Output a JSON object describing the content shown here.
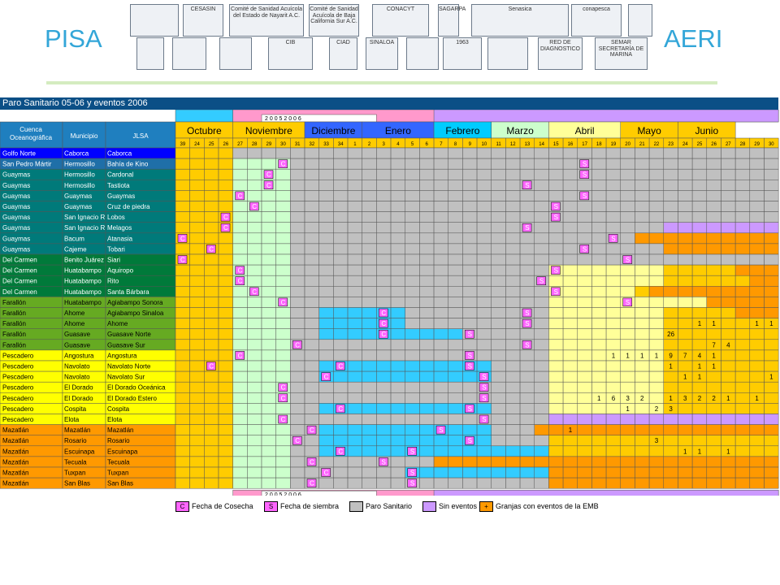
{
  "header": {
    "left_title": "PISA",
    "right_title": "AERI",
    "logos": [
      {
        "name": "sea-bird-logo",
        "label": ""
      },
      {
        "name": "cesasin-logo",
        "label": "CESASIN"
      },
      {
        "name": "comite-nayarit-logo",
        "label": "Comité de Sanidad Acuícola del Estado de Nayarit A.C."
      },
      {
        "name": "comite-bcs-logo",
        "label": "Comité de Sanidad Acuícola de Baja California Sur A.C."
      },
      {
        "name": "conacyt-logo",
        "label": "CONACYT"
      },
      {
        "name": "sagarpa-logo",
        "label": "SAGARPA"
      },
      {
        "name": "senasica-logo",
        "label": "Senasica"
      },
      {
        "name": "conapesca-logo",
        "label": "conapesca"
      },
      {
        "name": "shield-logo",
        "label": ""
      },
      {
        "name": "unam-logo",
        "label": ""
      },
      {
        "name": "coat-of-arms-logo",
        "label": ""
      },
      {
        "name": "nayarit-crest-logo",
        "label": ""
      },
      {
        "name": "cib-logo",
        "label": "CIB"
      },
      {
        "name": "ciad-logo",
        "label": "CIAD"
      },
      {
        "name": "sinaloa-logo",
        "label": "SINALOA"
      },
      {
        "name": "figure-logo",
        "label": ""
      },
      {
        "name": "uas-logo",
        "label": "1963"
      },
      {
        "name": "seal-logo",
        "label": ""
      },
      {
        "name": "red-diagnostico-logo",
        "label": "RED DE DIAGNOSTICO"
      },
      {
        "name": "semar-logo",
        "label": "SEMAR SECRETARÍA DE MARINA"
      }
    ]
  },
  "sheet": {
    "title": "Paro Sanitario 05-06 y eventos 2006",
    "year_banner": "2 0 0 5 2 0 0 6",
    "headers": {
      "cuenca": "Cuenca Oceanográfica",
      "municipio": "Municipio",
      "jlsa": "JLSA"
    },
    "months": [
      {
        "label": "Octubre",
        "start": 0,
        "span": 4,
        "color": "#ffcc00"
      },
      {
        "label": "Noviembre",
        "start": 4,
        "span": 5,
        "color": "#ffcc00"
      },
      {
        "label": "Diciembre",
        "start": 9,
        "span": 4,
        "color": "#3366ff"
      },
      {
        "label": "Enero",
        "start": 13,
        "span": 5,
        "color": "#3366ff"
      },
      {
        "label": "Febrero",
        "start": 18,
        "span": 4,
        "color": "#00ccff"
      },
      {
        "label": "Marzo",
        "start": 22,
        "span": 4,
        "color": "#ccffcc"
      },
      {
        "label": "Abril",
        "start": 26,
        "span": 5,
        "color": "#ffff99"
      },
      {
        "label": "Mayo",
        "start": 31,
        "span": 4,
        "color": "#ffcc00"
      },
      {
        "label": "Junio",
        "start": 35,
        "span": 4,
        "color": "#ffcc00"
      }
    ],
    "weeks": [
      "39",
      "24",
      "25",
      "26",
      "27",
      "28",
      "29",
      "30",
      "31",
      "32",
      "33",
      "34",
      "1",
      "2",
      "3",
      "4",
      "5",
      "6",
      "7",
      "8",
      "9",
      "10",
      "11",
      "12",
      "13",
      "14",
      "15",
      "16",
      "17",
      "18",
      "19",
      "20",
      "21",
      "22",
      "23",
      "24",
      "25",
      "26",
      "27",
      "28",
      "29",
      "30"
    ],
    "legend": [
      {
        "mark": "C",
        "label": "Fecha de Cosecha",
        "color": "#ff66ff"
      },
      {
        "mark": "S",
        "label": "Fecha de siembra",
        "color": "#ff66ff"
      },
      {
        "mark": "",
        "label": "Paro Sanitario",
        "color": "#c0c0c0"
      },
      {
        "mark": "",
        "label": "Sin eventos",
        "color": "#cc99ff"
      },
      {
        "mark": "+",
        "label": "Granjas con eventos de la EMB",
        "color": "#ff9900"
      }
    ],
    "rows": [
      {
        "cuenca": "Golfo Norte",
        "municipio": "Caborca",
        "jlsa": "Caborca",
        "color": "#0000ff",
        "cells": "YYYYGGGGGGGGGGGGGGGGGGGGGGGGGGGGGGGGGGGGGG",
        "marks": []
      },
      {
        "cuenca": "San Pedro Mártir",
        "municipio": "Hermosillo",
        "jlsa": "Bahía de Kino",
        "color": "#1f6fa8",
        "cells": "YYYYggggGGGGGGGGGGGGGGGGGGGGGGGGGGGGGGGGGG",
        "marks": [
          [
            7,
            "C"
          ],
          [
            28,
            "S"
          ]
        ]
      },
      {
        "cuenca": "Guaymas",
        "municipio": "Hermosillo",
        "jlsa": "Cardonal",
        "color": "#007a7a",
        "cells": "YYYYggggGGGGGGGGGGGGGGGGGGGGGGGGGGGGGGGGGG",
        "marks": [
          [
            6,
            "C"
          ],
          [
            28,
            "S"
          ]
        ]
      },
      {
        "cuenca": "Guaymas",
        "municipio": "Hermosillo",
        "jlsa": "Tastiota",
        "color": "#007a7a",
        "cells": "YYYYggggGGGGGGGGGGGGGGGGGGGGGGGGGGGGGGGGGG",
        "marks": [
          [
            6,
            "C"
          ],
          [
            24,
            "S"
          ]
        ]
      },
      {
        "cuenca": "Guaymas",
        "municipio": "Guaymas",
        "jlsa": "Guaymas",
        "color": "#007a7a",
        "cells": "YYYYggggGGGGGGGGGGGGGGGGGGGGGGGGGGGGGGGGGG",
        "marks": [
          [
            4,
            "C"
          ],
          [
            28,
            "S"
          ]
        ]
      },
      {
        "cuenca": "Guaymas",
        "municipio": "Guaymas",
        "jlsa": "Cruz de piedra",
        "color": "#007a7a",
        "cells": "YYYYggggGGGGGGGGGGGGGGGGGGGGGGGGGGGGGGGGGG",
        "marks": [
          [
            5,
            "C"
          ],
          [
            26,
            "S"
          ]
        ]
      },
      {
        "cuenca": "Guaymas",
        "municipio": "San Ignacio R.",
        "jlsa": "Lobos",
        "color": "#007a7a",
        "cells": "YYYYggggGGGGGGGGGGGGGGGGGGGGGGGGGGGGGGGGGG",
        "marks": [
          [
            3,
            "C"
          ],
          [
            26,
            "S"
          ]
        ]
      },
      {
        "cuenca": "Guaymas",
        "municipio": "San Ignacio R.",
        "jlsa": "Melagos",
        "color": "#007a7a",
        "cells": "YYYYggggGGGGGGGGGGGGGGGGGGGGGGGGGGPPPPPPPP",
        "marks": [
          [
            3,
            "C"
          ],
          [
            24,
            "S"
          ]
        ]
      },
      {
        "cuenca": "Guaymas",
        "municipio": "Bacum",
        "jlsa": "Atanasia",
        "color": "#007a7a",
        "cells": "YYYYggggGGGGGGGGGGGGGGGGGGGGGGGGOOOOOOOOOO",
        "marks": [
          [
            0,
            "C"
          ],
          [
            30,
            "S"
          ]
        ]
      },
      {
        "cuenca": "Guaymas",
        "municipio": "Cajeme",
        "jlsa": "Tobari",
        "color": "#007a7a",
        "cells": "YYYYggggGGGGGGGGGGGGGGGGGGGGGGGGGGOOOOOOOO",
        "marks": [
          [
            2,
            "C"
          ],
          [
            28,
            "S"
          ]
        ]
      },
      {
        "cuenca": "Del Carmen",
        "municipio": "Benito Juárez",
        "jlsa": "Siari",
        "color": "#007a3a",
        "cells": "YYYYggggGGGGGGGGGGGGGGGGGGGGGGGGGGGGGGGGGG",
        "marks": [
          [
            0,
            "C"
          ],
          [
            31,
            "S"
          ]
        ]
      },
      {
        "cuenca": "Del Carmen",
        "municipio": "Huatabampo",
        "jlsa": "Aquiropo",
        "color": "#007a3a",
        "cells": "YYYYggggGGGGGGGGGGGGGGGGGGllllllllYYYYYOOO",
        "marks": [
          [
            4,
            "C"
          ],
          [
            26,
            "S"
          ]
        ]
      },
      {
        "cuenca": "Del Carmen",
        "municipio": "Huatabampo",
        "jlsa": "Rito",
        "color": "#007a3a",
        "cells": "YYYYggggGGGGGGGGGGGGGGGGGGllllllllYYYYYYOO",
        "marks": [
          [
            4,
            "C"
          ],
          [
            25,
            "S"
          ]
        ]
      },
      {
        "cuenca": "Del Carmen",
        "municipio": "Huatabampo",
        "jlsa": "Santa Bárbara",
        "color": "#007a3a",
        "cells": "YYYYggggGGGGGGGGGGGGGGGGGGllllllYOOOOOOOOO",
        "marks": [
          [
            5,
            "C"
          ],
          [
            26,
            "S"
          ]
        ]
      },
      {
        "cuenca": "Farallón",
        "municipio": "Huatabampo",
        "jlsa": "Agiabampo Sonora",
        "color": "#66aa22",
        "cells": "YYYYggggGGGGGGGGGGGGGGGGGGlllllllllllOOOOO",
        "marks": [
          [
            7,
            "C"
          ],
          [
            31,
            "S"
          ]
        ]
      },
      {
        "cuenca": "Farallón",
        "municipio": "Ahome",
        "jlsa": "Agiabampo Sinaloa",
        "color": "#66aa22",
        "cells": "YYYYggggGGBBBBBBGGGGGGGGGGllllllllYYYYYOOO",
        "marks": [
          [
            14,
            "C"
          ],
          [
            24,
            "S"
          ]
        ]
      },
      {
        "cuenca": "Farallón",
        "municipio": "Ahome",
        "jlsa": "Ahome",
        "color": "#66aa22",
        "cells": "YYYYggggGGBBBBBBGGGGGGGGGGllllllllYYYYYYYY",
        "marks": [
          [
            14,
            "C"
          ],
          [
            24,
            "S"
          ],
          [
            36,
            "1"
          ],
          [
            37,
            "1"
          ],
          [
            40,
            "1"
          ],
          [
            41,
            "1"
          ]
        ]
      },
      {
        "cuenca": "Farallón",
        "municipio": "Guasave",
        "jlsa": "Guasave Norte",
        "color": "#66aa22",
        "cells": "YYYYggggGGBBBBBBBBBBGGGGGGllllllllYYYYYYYY",
        "marks": [
          [
            14,
            "C"
          ],
          [
            20,
            "S"
          ],
          [
            34,
            "26"
          ]
        ]
      },
      {
        "cuenca": "Farallón",
        "municipio": "Guasave",
        "jlsa": "Guasave Sur",
        "color": "#66aa22",
        "cells": "YYYYggggGGGGGGGGGGGGGGGGGGllllllllYYYYYYYY",
        "marks": [
          [
            8,
            "C"
          ],
          [
            24,
            "S"
          ],
          [
            37,
            "7"
          ],
          [
            38,
            "4"
          ]
        ]
      },
      {
        "cuenca": "Pescadero",
        "municipio": "Angostura",
        "jlsa": "Angostura",
        "color": "#ffff00",
        "cells": "YYYYggggGGGGGGGGGGGGGGGGGGllllllllYYYYYYYY",
        "marks": [
          [
            4,
            "C"
          ],
          [
            20,
            "S"
          ],
          [
            30,
            "1"
          ],
          [
            31,
            "1"
          ],
          [
            32,
            "1"
          ],
          [
            33,
            "1"
          ],
          [
            34,
            "9"
          ],
          [
            35,
            "7"
          ],
          [
            36,
            "4"
          ],
          [
            37,
            "1"
          ]
        ]
      },
      {
        "cuenca": "Pescadero",
        "municipio": "Navolato",
        "jlsa": "Navolato Norte",
        "color": "#ffff00",
        "cells": "YYYYggggGGBBBBBBBBBBBBGGGGllllllllYYYYYYYY",
        "marks": [
          [
            2,
            "C"
          ],
          [
            11,
            "C"
          ],
          [
            20,
            "S"
          ],
          [
            34,
            "1"
          ],
          [
            36,
            "1"
          ],
          [
            37,
            "1"
          ]
        ]
      },
      {
        "cuenca": "Pescadero",
        "municipio": "Navolato",
        "jlsa": "Navolato Sur",
        "color": "#ffff00",
        "cells": "YYYYggggGGBBBBBBBBBBBBGGGGllllllllYYYYYYYY",
        "marks": [
          [
            10,
            "C"
          ],
          [
            21,
            "S"
          ],
          [
            35,
            "1"
          ],
          [
            36,
            "1"
          ],
          [
            41,
            "1"
          ]
        ]
      },
      {
        "cuenca": "Pescadero",
        "municipio": "El Dorado",
        "jlsa": "El Dorado Oceánica",
        "color": "#ffff00",
        "cells": "YYYYggggGGGGGGGGGGGGGGGGGGllllllllYYYYYYYY",
        "marks": [
          [
            7,
            "C"
          ],
          [
            21,
            "S"
          ]
        ]
      },
      {
        "cuenca": "Pescadero",
        "municipio": "El Dorado",
        "jlsa": "El Dorado Estero",
        "color": "#ffff00",
        "cells": "YYYYggggGGGGGGGGGGGGGGGGGGllllllllYYYYYYYY",
        "marks": [
          [
            7,
            "C"
          ],
          [
            21,
            "S"
          ],
          [
            29,
            "1"
          ],
          [
            30,
            "6"
          ],
          [
            31,
            "3"
          ],
          [
            32,
            "2"
          ],
          [
            34,
            "1"
          ],
          [
            35,
            "3"
          ],
          [
            36,
            "2"
          ],
          [
            37,
            "2"
          ],
          [
            38,
            "1"
          ],
          [
            40,
            "1"
          ]
        ]
      },
      {
        "cuenca": "Pescadero",
        "municipio": "Cospita",
        "jlsa": "Cospita",
        "color": "#ffff00",
        "cells": "YYYYggggGGBBBBBBBBBBBBGGGGllllllllYYYYYYYY",
        "marks": [
          [
            11,
            "C"
          ],
          [
            20,
            "S"
          ],
          [
            31,
            "1"
          ],
          [
            33,
            "2"
          ],
          [
            34,
            "3"
          ]
        ]
      },
      {
        "cuenca": "Pescadero",
        "municipio": "Elota",
        "jlsa": "Elota",
        "color": "#ffff00",
        "cells": "YYYYggggGGGGGGGGGGGGGGGGGGPPPPPPPPPPPPPPPP",
        "marks": [
          [
            7,
            "C"
          ],
          [
            21,
            "S"
          ]
        ]
      },
      {
        "cuenca": "Mazatlán",
        "municipio": "Mazatlán",
        "jlsa": "Mazatlán",
        "color": "#ff9900",
        "cells": "YYYYggggGGBBBBBBBBBBBBGGGOOOOOOOOOOOOOOOOO",
        "marks": [
          [
            9,
            "C"
          ],
          [
            18,
            "S"
          ],
          [
            27,
            "1"
          ]
        ]
      },
      {
        "cuenca": "Mazatlán",
        "municipio": "Rosario",
        "jlsa": "Rosario",
        "color": "#ff9900",
        "cells": "YYYYggggGGBBBBBBBBBBBBGGGGYYYYYYYYYYYYYYYY",
        "marks": [
          [
            8,
            "C"
          ],
          [
            20,
            "S"
          ],
          [
            33,
            "3"
          ]
        ]
      },
      {
        "cuenca": "Mazatlán",
        "municipio": "Escuinapa",
        "jlsa": "Escuinapa",
        "color": "#ff9900",
        "cells": "YYYYggggGGBBBBBBBBBBBBBBBBYYYYYYYYYYYYYYYY",
        "marks": [
          [
            11,
            "C"
          ],
          [
            16,
            "S"
          ],
          [
            35,
            "1"
          ],
          [
            36,
            "1"
          ],
          [
            38,
            "1"
          ]
        ]
      },
      {
        "cuenca": "Mazatlán",
        "municipio": "Tecuala",
        "jlsa": "Tecuala",
        "color": "#ff9900",
        "cells": "YYYYggggGGGGGGGGGGOOOOOOOOOOOOOOOOOOOOOOOO",
        "marks": [
          [
            9,
            "C"
          ],
          [
            14,
            "S"
          ]
        ]
      },
      {
        "cuenca": "Mazatlán",
        "municipio": "Tuxpan",
        "jlsa": "Tuxpan",
        "color": "#ff9900",
        "cells": "YYYYggggGGGGGGGGBBBBBBBBBBOOOOOOOOOOOOOOOO",
        "marks": [
          [
            10,
            "C"
          ],
          [
            16,
            "S"
          ]
        ]
      },
      {
        "cuenca": "Mazatlán",
        "municipio": "San Blas",
        "jlsa": "San Blas",
        "color": "#ff9900",
        "cells": "YYYYggggGGGGGGGGGGGGGGGGGGOOOOOOOOOOOOOOOO",
        "marks": [
          [
            9,
            "C"
          ],
          [
            16,
            "S"
          ]
        ]
      }
    ]
  }
}
